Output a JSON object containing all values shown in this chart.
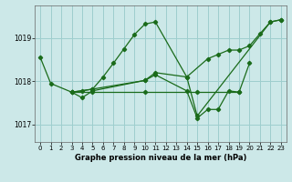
{
  "background_color": "#cce8e8",
  "plot_color": "#1a6b1a",
  "grid_color": "#9ecece",
  "xlabel": "Graphe pression niveau de la mer (hPa)",
  "ylim": [
    1016.6,
    1019.75
  ],
  "xlim": [
    -0.5,
    23.5
  ],
  "yticks": [
    1017,
    1018,
    1019
  ],
  "xticks": [
    0,
    1,
    2,
    3,
    4,
    5,
    6,
    7,
    8,
    9,
    10,
    11,
    12,
    13,
    14,
    15,
    16,
    17,
    18,
    19,
    20,
    21,
    22,
    23
  ],
  "series": [
    {
      "x": [
        0,
        1,
        3,
        5,
        6,
        7,
        8,
        9,
        10,
        11,
        14,
        15,
        22,
        23
      ],
      "y": [
        1018.55,
        1017.95,
        1017.75,
        1017.82,
        1018.1,
        1018.42,
        1018.75,
        1019.08,
        1019.32,
        1019.37,
        1018.1,
        1017.2,
        1019.37,
        1019.42
      ]
    },
    {
      "x": [
        3,
        4,
        5,
        10,
        11,
        14,
        16,
        17,
        18,
        19,
        20,
        21,
        22,
        23
      ],
      "y": [
        1017.75,
        1017.78,
        1017.82,
        1018.02,
        1018.2,
        1018.1,
        1018.52,
        1018.62,
        1018.72,
        1018.72,
        1018.82,
        1019.1,
        1019.37,
        1019.42
      ]
    },
    {
      "x": [
        3,
        4,
        5,
        10,
        11,
        14,
        15,
        16,
        17,
        18,
        19,
        20
      ],
      "y": [
        1017.75,
        1017.62,
        1017.78,
        1018.02,
        1018.15,
        1017.78,
        1017.15,
        1017.35,
        1017.35,
        1017.78,
        1017.75,
        1018.42
      ]
    },
    {
      "x": [
        3,
        5,
        10,
        15,
        19
      ],
      "y": [
        1017.75,
        1017.75,
        1017.75,
        1017.75,
        1017.75
      ]
    }
  ]
}
